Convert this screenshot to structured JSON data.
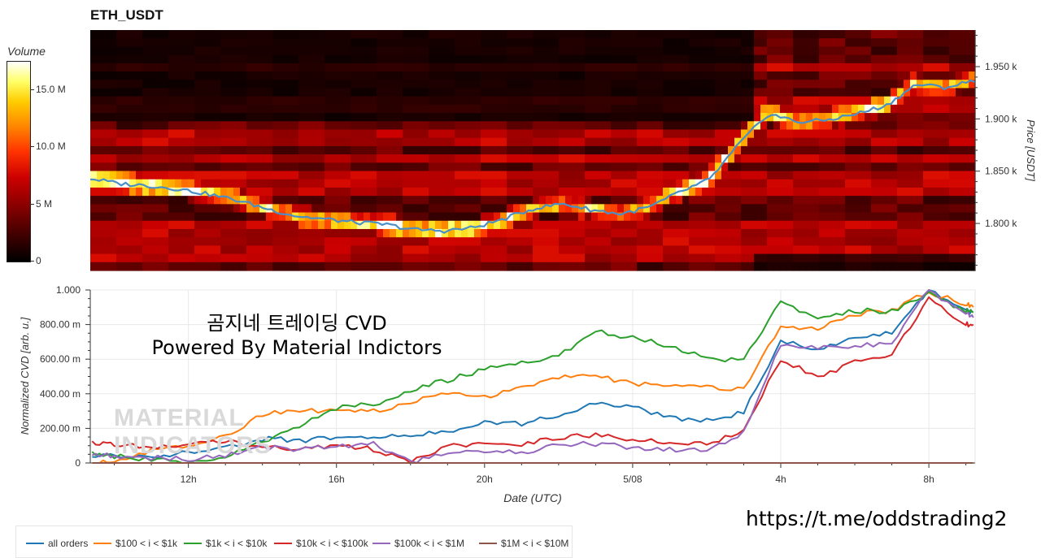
{
  "header": {
    "title": "ETH_USDT"
  },
  "colorbar": {
    "title": "Volume",
    "ticks": [
      "15.0 M",
      "10.0 M",
      "5 M",
      "0"
    ],
    "tick_values": [
      15,
      10,
      5,
      0
    ],
    "max": 17.5
  },
  "overlay": {
    "line1": "곰지네 트레이딩 CVD",
    "line2": "Powered By Material Indictors"
  },
  "watermark": {
    "line1": "MATERIAL",
    "line2": "INDICATORS"
  },
  "url": "https://t.me/oddstrading2",
  "legend": {
    "items": [
      {
        "label": "all orders",
        "color": "#1f77b4"
      },
      {
        "label": "$100 < i < $1k",
        "color": "#ff7f0e"
      },
      {
        "label": "$1k < i < $10k",
        "color": "#2ca02c"
      },
      {
        "label": "$10k < i < $100k",
        "color": "#d62728"
      },
      {
        "label": "$100k < i < $1M",
        "color": "#9467bd"
      },
      {
        "label": "$1M < i < $10M",
        "color": "#8c564b"
      }
    ]
  },
  "chart_data": [
    {
      "type": "heatmap",
      "title": "ETH_USDT",
      "ylabel": "Price [USDT]",
      "yticks": [
        "1.950 k",
        "1.900 k",
        "1.850 k",
        "1.800 k"
      ],
      "ytick_values": [
        1950,
        1900,
        1850,
        1800
      ],
      "ylim": [
        1755,
        1985
      ],
      "colorbar_label": "Volume",
      "price_line_color": "#4a8fc7",
      "price_line": {
        "t": [
          0,
          1,
          2,
          3,
          4,
          5,
          6,
          7,
          8,
          9,
          10,
          11,
          12,
          13,
          14,
          15,
          16,
          17,
          18,
          19,
          20,
          21,
          22,
          23,
          24,
          25,
          26,
          27,
          28,
          29,
          30
        ],
        "price": [
          1843,
          1838,
          1836,
          1833,
          1828,
          1822,
          1814,
          1807,
          1804,
          1801,
          1799,
          1794,
          1793,
          1796,
          1804,
          1814,
          1819,
          1813,
          1809,
          1816,
          1830,
          1842,
          1876,
          1905,
          1897,
          1899,
          1905,
          1913,
          1933,
          1930,
          1937
        ]
      }
    },
    {
      "type": "line",
      "xlabel": "Date (UTC)",
      "ylabel": "Normalized CVD [arb. u.]",
      "xticks": [
        "12h",
        "16h",
        "20h",
        "5/08",
        "4h",
        "8h"
      ],
      "xtick_values": [
        12,
        16,
        20,
        24,
        28,
        32
      ],
      "xlim": [
        9.35,
        33.25
      ],
      "yticks": [
        "1.000",
        "800.00 m",
        "600.00 m",
        "400.00 m",
        "200.00 m",
        "0"
      ],
      "ytick_values": [
        1000,
        800,
        600,
        400,
        200,
        0
      ],
      "ylim": [
        0,
        1000
      ],
      "x": [
        9.4,
        10,
        11,
        12,
        13,
        14,
        15,
        16,
        17,
        18,
        19,
        20,
        21,
        22,
        23,
        24,
        25,
        26,
        27,
        28,
        29,
        30,
        31,
        32,
        33,
        33.2
      ],
      "series": [
        {
          "name": "all orders",
          "color": "#1f77b4",
          "values": [
            50,
            40,
            35,
            60,
            90,
            140,
            130,
            150,
            140,
            160,
            180,
            240,
            230,
            280,
            340,
            320,
            260,
            250,
            290,
            700,
            660,
            720,
            760,
            1000,
            880,
            870
          ]
        },
        {
          "name": "$100 < i < $1k",
          "color": "#ff7f0e",
          "values": [
            0,
            10,
            70,
            100,
            150,
            280,
            300,
            310,
            300,
            350,
            400,
            380,
            430,
            500,
            500,
            460,
            440,
            440,
            420,
            800,
            770,
            860,
            880,
            990,
            920,
            900
          ]
        },
        {
          "name": "$1k < i < $10k",
          "color": "#2ca02c",
          "values": [
            60,
            40,
            20,
            10,
            30,
            120,
            220,
            320,
            340,
            420,
            480,
            540,
            580,
            620,
            760,
            720,
            680,
            600,
            600,
            930,
            840,
            880,
            880,
            980,
            880,
            870
          ]
        },
        {
          "name": "$10k < i < $100k",
          "color": "#d62728",
          "values": [
            120,
            110,
            90,
            100,
            130,
            90,
            80,
            100,
            80,
            10,
            100,
            110,
            100,
            150,
            160,
            140,
            120,
            110,
            190,
            600,
            500,
            580,
            620,
            960,
            800,
            800
          ]
        },
        {
          "name": "$100k < i < $1M",
          "color": "#9467bd",
          "values": [
            50,
            40,
            30,
            20,
            40,
            90,
            80,
            100,
            110,
            0,
            60,
            60,
            60,
            110,
            110,
            90,
            80,
            70,
            180,
            680,
            660,
            680,
            690,
            1000,
            860,
            840
          ]
        },
        {
          "name": "$1M < i < $10M",
          "color": "#8c564b",
          "values": [
            0,
            0,
            0,
            0,
            0,
            0,
            0,
            0,
            0,
            0,
            0,
            0,
            0,
            0,
            0,
            0,
            0,
            0,
            0,
            0,
            0,
            0,
            0,
            0,
            0,
            0
          ]
        }
      ]
    }
  ]
}
